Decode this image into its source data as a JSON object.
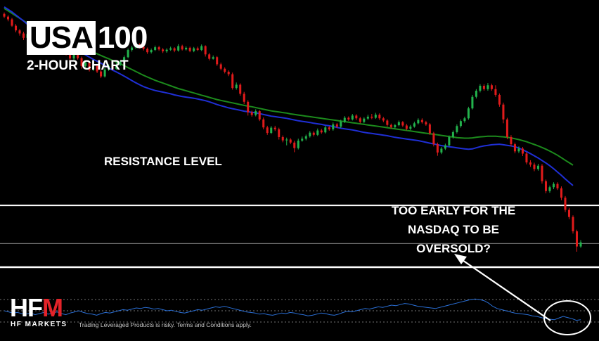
{
  "header": {
    "title_main": "USA",
    "title_number": "100",
    "subtitle": "2-HOUR CHART"
  },
  "annotations": {
    "resistance_label": "RESISTANCE LEVEL",
    "question_line1": "TOO EARLY FOR THE",
    "question_line2": "NASDAQ TO BE",
    "question_line3": "OVERSOLD?"
  },
  "branding": {
    "logo_text_1": "HF",
    "logo_text_2": "M",
    "logo_subtitle": "HF MARKETS",
    "disclaimer": "Trading Leveraged Products is risky. Terms and Conditions apply."
  },
  "colors": {
    "background": "#000000",
    "bull": "#22b24c",
    "bear": "#e01b1b",
    "ma_fast": "#1f2fd6",
    "ma_slow": "#1c8a1c",
    "rsi": "#2a6fd6",
    "level_line": "#ffffff"
  },
  "chart_data": {
    "type": "candlestick",
    "title": "USA100",
    "subtitle": "2-HOUR CHART",
    "y_range": [
      0,
      100
    ],
    "grid": false,
    "candles": [
      [
        96.5,
        95.5,
        97.0,
        95.0
      ],
      [
        95.5,
        94.5,
        96.0,
        93.8
      ],
      [
        94.5,
        92.2,
        95.0,
        91.8
      ],
      [
        92.2,
        90.5,
        92.8,
        89.8
      ],
      [
        90.5,
        89.4,
        91.0,
        88.6
      ],
      [
        89.4,
        87.8,
        90.0,
        87.0
      ],
      [
        87.8,
        89.2,
        89.8,
        87.4
      ],
      [
        89.2,
        87.2,
        89.6,
        86.6
      ],
      [
        87.2,
        84.5,
        87.8,
        83.8
      ],
      [
        84.5,
        85.8,
        86.5,
        84.0
      ],
      [
        85.8,
        84.2,
        86.4,
        83.4
      ],
      [
        84.2,
        83.0,
        84.8,
        82.2
      ],
      [
        83.0,
        84.6,
        85.2,
        82.6
      ],
      [
        84.6,
        83.4,
        85.0,
        82.8
      ],
      [
        83.4,
        84.8,
        85.6,
        82.9
      ],
      [
        84.8,
        83.6,
        85.4,
        83.0
      ],
      [
        83.6,
        82.0,
        84.2,
        81.4
      ],
      [
        82.0,
        80.3,
        82.6,
        78.8
      ],
      [
        80.3,
        81.8,
        82.4,
        79.6
      ],
      [
        81.8,
        80.4,
        82.3,
        79.9
      ],
      [
        80.4,
        77.6,
        81.0,
        76.6
      ],
      [
        77.6,
        78.9,
        79.6,
        77.0
      ],
      [
        78.9,
        76.2,
        79.4,
        75.6
      ],
      [
        76.2,
        77.6,
        78.2,
        75.8
      ],
      [
        77.6,
        75.6,
        78.0,
        75.0
      ],
      [
        75.6,
        73.8,
        76.2,
        73.2
      ],
      [
        73.8,
        76.3,
        76.9,
        73.4
      ],
      [
        76.3,
        77.6,
        78.2,
        75.8
      ],
      [
        77.6,
        76.6,
        78.3,
        76.0
      ],
      [
        76.6,
        78.0,
        78.8,
        76.2
      ],
      [
        78.0,
        79.2,
        79.8,
        77.6
      ],
      [
        79.2,
        80.8,
        81.4,
        78.8
      ],
      [
        80.8,
        83.4,
        83.9,
        80.4
      ],
      [
        83.4,
        84.3,
        84.9,
        82.8
      ],
      [
        84.3,
        85.4,
        86.0,
        83.8
      ],
      [
        85.4,
        84.6,
        85.8,
        83.9
      ],
      [
        84.6,
        83.8,
        85.1,
        83.2
      ],
      [
        83.8,
        82.6,
        84.3,
        82.0
      ],
      [
        82.6,
        83.4,
        83.9,
        82.1
      ],
      [
        83.4,
        84.4,
        85.0,
        83.0
      ],
      [
        84.4,
        83.6,
        84.9,
        83.1
      ],
      [
        83.6,
        82.9,
        84.1,
        82.3
      ],
      [
        82.9,
        83.5,
        84.0,
        82.4
      ],
      [
        83.5,
        84.0,
        84.6,
        83.1
      ],
      [
        84.0,
        83.2,
        84.4,
        82.6
      ],
      [
        83.2,
        84.8,
        85.5,
        82.8
      ],
      [
        84.8,
        83.6,
        85.3,
        83.2
      ],
      [
        83.6,
        84.2,
        84.7,
        83.2
      ],
      [
        84.2,
        83.0,
        84.6,
        82.6
      ],
      [
        83.0,
        84.0,
        84.5,
        82.6
      ],
      [
        84.0,
        83.4,
        84.6,
        83.0
      ],
      [
        83.4,
        84.8,
        85.4,
        83.0
      ],
      [
        84.8,
        81.8,
        85.1,
        81.0
      ],
      [
        81.8,
        80.2,
        82.3,
        79.6
      ],
      [
        80.2,
        80.8,
        81.4,
        79.9
      ],
      [
        80.8,
        78.2,
        81.2,
        77.6
      ],
      [
        78.2,
        76.6,
        78.8,
        76.0
      ],
      [
        76.6,
        75.5,
        77.1,
        74.9
      ],
      [
        75.5,
        74.6,
        76.0,
        73.9
      ],
      [
        74.6,
        69.6,
        75.2,
        69.0
      ],
      [
        69.6,
        70.8,
        71.6,
        69.0
      ],
      [
        70.8,
        67.5,
        71.3,
        66.8
      ],
      [
        67.5,
        64.6,
        68.2,
        63.8
      ],
      [
        64.6,
        60.8,
        65.2,
        59.6
      ],
      [
        60.8,
        59.8,
        61.4,
        59.2
      ],
      [
        59.8,
        61.2,
        61.9,
        59.3
      ],
      [
        61.2,
        58.2,
        61.6,
        57.6
      ],
      [
        58.2,
        55.3,
        58.9,
        54.6
      ],
      [
        55.3,
        53.3,
        55.9,
        52.6
      ],
      [
        53.3,
        55.2,
        55.8,
        52.9
      ],
      [
        55.2,
        54.6,
        55.9,
        54.0
      ],
      [
        54.6,
        51.8,
        55.2,
        50.9
      ],
      [
        51.8,
        50.6,
        52.4,
        49.9
      ],
      [
        50.6,
        50.9,
        51.6,
        48.8
      ],
      [
        50.9,
        49.8,
        51.4,
        49.2
      ],
      [
        49.8,
        47.8,
        50.5,
        46.3
      ],
      [
        47.8,
        50.5,
        51.2,
        47.3
      ],
      [
        50.5,
        51.2,
        52.0,
        50.1
      ],
      [
        51.2,
        52.1,
        52.7,
        50.6
      ],
      [
        52.1,
        53.4,
        54.0,
        51.6
      ],
      [
        53.4,
        52.6,
        53.9,
        52.0
      ],
      [
        52.6,
        54.2,
        54.9,
        52.2
      ],
      [
        54.2,
        53.5,
        54.8,
        53.0
      ],
      [
        53.5,
        55.3,
        55.9,
        53.1
      ],
      [
        55.3,
        54.6,
        55.8,
        54.1
      ],
      [
        54.6,
        56.4,
        57.1,
        54.1
      ],
      [
        56.4,
        55.6,
        56.9,
        55.0
      ],
      [
        55.6,
        57.4,
        58.1,
        55.1
      ],
      [
        57.4,
        58.8,
        59.4,
        56.9
      ],
      [
        58.8,
        58.2,
        59.3,
        57.7
      ],
      [
        58.2,
        59.6,
        60.2,
        57.8
      ],
      [
        59.6,
        58.6,
        60.1,
        58.0
      ],
      [
        58.6,
        57.3,
        59.1,
        56.8
      ],
      [
        57.3,
        58.5,
        59.0,
        56.8
      ],
      [
        58.5,
        59.2,
        59.9,
        58.0
      ],
      [
        59.2,
        58.8,
        60.2,
        58.3
      ],
      [
        58.8,
        59.9,
        60.6,
        58.4
      ],
      [
        59.9,
        58.6,
        60.4,
        58.0
      ],
      [
        58.6,
        57.8,
        59.1,
        57.2
      ],
      [
        57.8,
        56.2,
        58.3,
        55.6
      ],
      [
        56.2,
        55.4,
        56.7,
        54.9
      ],
      [
        55.4,
        56.1,
        56.6,
        55.0
      ],
      [
        56.1,
        57.2,
        57.8,
        55.7
      ],
      [
        57.2,
        56.0,
        57.6,
        55.5
      ],
      [
        56.0,
        54.8,
        56.6,
        54.2
      ],
      [
        54.8,
        55.6,
        56.2,
        54.3
      ],
      [
        55.6,
        56.8,
        57.4,
        55.2
      ],
      [
        56.8,
        58.0,
        58.6,
        56.4
      ],
      [
        58.0,
        57.2,
        58.6,
        56.7
      ],
      [
        57.2,
        56.4,
        57.7,
        55.9
      ],
      [
        56.4,
        53.2,
        56.9,
        52.6
      ],
      [
        53.2,
        49.2,
        53.7,
        48.4
      ],
      [
        49.2,
        46.2,
        49.8,
        45.0
      ],
      [
        46.2,
        47.6,
        48.2,
        45.6
      ],
      [
        47.6,
        48.8,
        49.4,
        47.1
      ],
      [
        48.8,
        51.8,
        52.4,
        48.3
      ],
      [
        51.8,
        53.6,
        54.2,
        51.2
      ],
      [
        53.6,
        55.8,
        56.4,
        53.1
      ],
      [
        55.8,
        57.6,
        58.2,
        55.2
      ],
      [
        57.6,
        58.6,
        59.2,
        57.0
      ],
      [
        58.6,
        62.2,
        62.8,
        58.1
      ],
      [
        62.2,
        66.4,
        67.1,
        61.8
      ],
      [
        66.4,
        68.6,
        69.2,
        65.8
      ],
      [
        68.6,
        70.4,
        71.0,
        68.0
      ],
      [
        70.4,
        69.2,
        71.0,
        68.6
      ],
      [
        69.2,
        70.6,
        71.4,
        68.6
      ],
      [
        70.6,
        69.2,
        71.2,
        68.6
      ],
      [
        69.2,
        67.1,
        70.6,
        66.4
      ],
      [
        67.1,
        63.6,
        67.6,
        62.8
      ],
      [
        63.6,
        58.2,
        64.3,
        56.8
      ],
      [
        58.2,
        51.8,
        58.8,
        51.0
      ],
      [
        51.8,
        49.2,
        52.5,
        48.4
      ],
      [
        49.2,
        46.6,
        49.8,
        45.9
      ],
      [
        46.6,
        47.6,
        48.4,
        46.0
      ],
      [
        47.6,
        45.8,
        48.2,
        44.9
      ],
      [
        45.8,
        42.6,
        46.4,
        41.9
      ],
      [
        42.6,
        41.8,
        43.4,
        41.0
      ],
      [
        41.8,
        40.2,
        42.5,
        39.4
      ],
      [
        40.2,
        41.4,
        42.1,
        39.6
      ],
      [
        41.4,
        35.8,
        42.0,
        34.9
      ],
      [
        35.8,
        32.2,
        36.4,
        31.4
      ],
      [
        32.2,
        33.6,
        34.2,
        31.6
      ],
      [
        33.6,
        34.8,
        35.4,
        32.9
      ],
      [
        34.8,
        33.2,
        35.4,
        32.6
      ],
      [
        33.2,
        29.8,
        33.9,
        28.9
      ],
      [
        29.8,
        25.4,
        30.4,
        24.6
      ],
      [
        25.4,
        22.8,
        26.1,
        22.0
      ],
      [
        22.8,
        17.6,
        23.4,
        16.8
      ],
      [
        17.6,
        12.1,
        18.2,
        10.2
      ],
      [
        12.1,
        13.6,
        14.4,
        11.6
      ]
    ],
    "ma_fast": [
      99.0,
      98.1,
      97.2,
      96.1,
      95.0,
      93.9,
      92.7,
      91.7,
      90.8,
      90.2,
      89.9,
      89.3,
      88.6,
      87.9,
      87.1,
      86.1,
      85.2,
      84.5,
      83.9,
      83.2,
      82.4,
      81.6,
      80.8,
      80.0,
      79.3,
      78.6,
      77.8,
      76.9,
      76.1,
      75.4,
      74.7,
      73.9,
      73.1,
      72.3,
      71.5,
      70.8,
      70.1,
      69.6,
      69.1,
      68.7,
      68.4,
      68.1,
      67.8,
      67.5,
      67.1,
      66.8,
      66.5,
      66.3,
      66.1,
      65.9,
      65.6,
      65.3,
      65.0,
      64.6,
      64.1,
      63.6,
      63.2,
      62.8,
      62.4,
      62.1,
      61.8,
      61.5,
      61.2,
      61.0,
      60.8,
      60.6,
      60.3,
      60.0,
      59.7,
      59.4,
      59.2,
      59.0,
      58.8,
      58.6,
      58.3,
      58.0,
      57.7,
      57.5,
      57.3,
      57.1,
      56.8,
      56.6,
      56.4,
      56.1,
      55.9,
      55.6,
      55.3,
      55.0,
      54.8,
      54.6,
      54.4,
      54.1,
      53.8,
      53.5,
      53.3,
      53.1,
      52.9,
      52.7,
      52.5,
      52.3,
      52.0,
      51.7,
      51.5,
      51.3,
      51.1,
      50.9,
      50.7,
      50.5,
      50.2,
      49.9,
      49.6,
      49.3,
      49.0,
      48.7,
      48.5,
      48.3,
      48.1,
      47.9,
      47.7,
      47.5,
      47.4,
      47.5,
      47.9,
      48.3,
      48.6,
      48.8,
      49.0,
      49.1,
      49.2,
      49.0,
      48.8,
      48.6,
      48.3,
      47.8,
      47.2,
      46.5,
      45.8,
      45.0,
      44.2,
      43.3,
      42.4,
      41.4,
      40.3,
      39.1,
      37.9,
      36.6,
      35.4,
      34.2
    ],
    "ma_slow": [
      98.5,
      97.6,
      96.7,
      95.8,
      94.9,
      94.0,
      93.1,
      92.3,
      91.6,
      91.0,
      90.4,
      89.8,
      89.2,
      88.6,
      88.0,
      87.4,
      86.8,
      86.2,
      85.6,
      85.0,
      84.4,
      83.8,
      83.2,
      82.6,
      82.0,
      81.4,
      80.8,
      80.2,
      79.6,
      79.0,
      78.4,
      77.7,
      77.0,
      76.3,
      75.6,
      74.9,
      74.2,
      73.6,
      73.0,
      72.4,
      71.9,
      71.4,
      70.9,
      70.4,
      69.9,
      69.4,
      69.0,
      68.6,
      68.2,
      67.8,
      67.4,
      67.0,
      66.6,
      66.2,
      65.8,
      65.4,
      65.1,
      64.8,
      64.5,
      64.2,
      63.9,
      63.6,
      63.3,
      63.0,
      62.8,
      62.5,
      62.2,
      61.9,
      61.6,
      61.3,
      61.1,
      60.9,
      60.7,
      60.5,
      60.2,
      60.0,
      59.8,
      59.6,
      59.4,
      59.2,
      59.0,
      58.8,
      58.6,
      58.4,
      58.2,
      58.0,
      57.8,
      57.6,
      57.4,
      57.2,
      57.0,
      56.8,
      56.6,
      56.4,
      56.2,
      56.0,
      55.8,
      55.6,
      55.4,
      55.2,
      55.0,
      54.8,
      54.6,
      54.4,
      54.2,
      54.0,
      53.8,
      53.6,
      53.4,
      53.2,
      53.0,
      52.8,
      52.6,
      52.4,
      52.2,
      52.0,
      51.8,
      51.6,
      51.5,
      51.4,
      51.4,
      51.5,
      51.7,
      51.9,
      52.0,
      52.1,
      52.1,
      52.1,
      52.0,
      51.9,
      51.7,
      51.5,
      51.2,
      50.9,
      50.5,
      50.1,
      49.6,
      49.1,
      48.6,
      48.0,
      47.4,
      46.7,
      46.0,
      45.2,
      44.3,
      43.4,
      42.5,
      41.6
    ],
    "levels": [
      {
        "name": "RESISTANCE LEVEL",
        "value": 27.0
      },
      {
        "name": "",
        "value": 13.2
      },
      {
        "name": "",
        "value": 4.6
      }
    ],
    "rsi": [
      50,
      48,
      46,
      47,
      45,
      44,
      46,
      43,
      45,
      47,
      44,
      46,
      48,
      45,
      43,
      46,
      48,
      50,
      47,
      45,
      44,
      42,
      45,
      47,
      46,
      48,
      50,
      52,
      51,
      53,
      55,
      54,
      56,
      55,
      53,
      54,
      52,
      50,
      51,
      49,
      47,
      46,
      48,
      50,
      52,
      51,
      53,
      55,
      57,
      56,
      58,
      56,
      54,
      52,
      50,
      48,
      47,
      46,
      44,
      45,
      43,
      42,
      44,
      46,
      45,
      47,
      46,
      44,
      43,
      41,
      42,
      44,
      46,
      45,
      43,
      42,
      44,
      47,
      49,
      48,
      50,
      52,
      54,
      53,
      55,
      57,
      56,
      58,
      60,
      59,
      61,
      63,
      62,
      60,
      58,
      57,
      56,
      55,
      54,
      56,
      58,
      60,
      62,
      64,
      66,
      68,
      70,
      71,
      70,
      68,
      64,
      58,
      54,
      52,
      50,
      48,
      46,
      45,
      44,
      43,
      41,
      40,
      38,
      36,
      35,
      34,
      37,
      40,
      38,
      36,
      33,
      34
    ],
    "rsi_levels": [
      70,
      50,
      30
    ]
  }
}
